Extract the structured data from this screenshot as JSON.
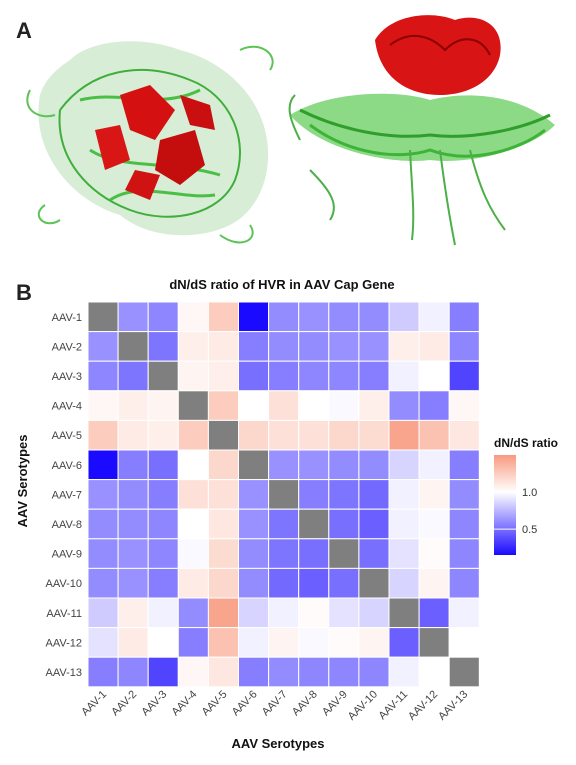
{
  "panels": {
    "a": "A",
    "b": "B"
  },
  "chart_data": {
    "type": "heatmap",
    "title": "dN/dS ratio of HVR in AAV Cap Gene",
    "xlabel": "AAV Serotypes",
    "ylabel": "AAV Serotypes",
    "categories": [
      "AAV-1",
      "AAV-2",
      "AAV-3",
      "AAV-4",
      "AAV-5",
      "AAV-6",
      "AAV-7",
      "AAV-8",
      "AAV-9",
      "AAV-10",
      "AAV-11",
      "AAV-12",
      "AAV-13"
    ],
    "legend": {
      "title": "dN/dS ratio",
      "ticks": [
        1.0,
        0.5
      ],
      "tick_labels": [
        "1.0",
        "0.5"
      ],
      "min": 0.15,
      "max": 1.5,
      "midpoint": 1.0,
      "low_color": "#1a0aff",
      "mid_color": "#ffffff",
      "high_color": "#f89a7f",
      "diagonal_color": "#7f7f7f"
    },
    "values": [
      [
        null,
        0.62,
        0.58,
        1.04,
        1.25,
        0.15,
        0.6,
        0.62,
        0.6,
        0.6,
        0.82,
        0.95,
        0.55
      ],
      [
        0.62,
        null,
        0.52,
        1.08,
        1.1,
        0.55,
        0.6,
        0.6,
        0.62,
        0.62,
        1.08,
        1.1,
        0.58
      ],
      [
        0.58,
        0.52,
        null,
        1.05,
        1.08,
        0.5,
        0.55,
        0.58,
        0.58,
        0.55,
        0.95,
        1.0,
        0.35
      ],
      [
        1.04,
        1.08,
        1.05,
        null,
        1.25,
        1.0,
        1.15,
        1.0,
        0.98,
        1.08,
        0.6,
        0.55,
        1.04
      ],
      [
        1.25,
        1.1,
        1.08,
        1.25,
        null,
        1.2,
        1.15,
        1.15,
        1.2,
        1.18,
        1.45,
        1.3,
        1.12
      ],
      [
        0.15,
        0.55,
        0.5,
        1.0,
        1.2,
        null,
        0.62,
        0.62,
        0.6,
        0.6,
        0.85,
        0.95,
        0.55
      ],
      [
        0.62,
        0.6,
        0.55,
        1.15,
        1.15,
        0.62,
        null,
        0.55,
        0.52,
        0.48,
        0.95,
        1.05,
        0.6
      ],
      [
        0.6,
        0.6,
        0.58,
        1.0,
        1.12,
        0.62,
        0.52,
        null,
        0.5,
        0.45,
        0.95,
        0.98,
        0.58
      ],
      [
        0.6,
        0.62,
        0.58,
        0.98,
        1.18,
        0.6,
        0.52,
        0.5,
        null,
        0.5,
        0.9,
        1.02,
        0.58
      ],
      [
        0.6,
        0.62,
        0.55,
        1.1,
        1.2,
        0.6,
        0.48,
        0.45,
        0.5,
        null,
        0.85,
        1.05,
        0.58
      ],
      [
        0.82,
        1.08,
        0.95,
        0.6,
        1.45,
        0.85,
        0.95,
        1.02,
        0.9,
        0.85,
        null,
        0.45,
        0.95
      ],
      [
        0.9,
        1.1,
        1.0,
        0.55,
        1.3,
        0.95,
        1.05,
        0.98,
        1.02,
        1.05,
        0.45,
        null,
        1.0
      ],
      [
        0.55,
        0.58,
        0.35,
        1.04,
        1.12,
        0.55,
        0.6,
        0.58,
        0.58,
        0.58,
        0.95,
        1.0,
        null
      ]
    ]
  }
}
